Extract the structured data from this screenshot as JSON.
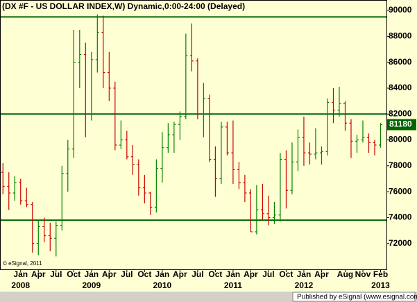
{
  "chart_data": {
    "type": "ohlc",
    "title": "(DX #F - US DOLLAR INDEX,W) Dynamic,0:00-24:00 (Delayed)",
    "copyright": "© eSignal, 2011",
    "footer": "Published by eSignal (www.esignal.com)",
    "up_color": "#008000",
    "down_color": "#cc0000",
    "line_color": "#006400",
    "x": [
      "2007-10",
      "2007-11",
      "2007-12",
      "2008-01",
      "2008-02",
      "2008-03",
      "2008-04",
      "2008-05",
      "2008-06",
      "2008-07",
      "2008-08",
      "2008-09",
      "2008-10",
      "2008-11",
      "2008-12",
      "2009-01",
      "2009-02",
      "2009-03",
      "2009-04",
      "2009-05",
      "2009-06",
      "2009-07",
      "2009-08",
      "2009-09",
      "2009-10",
      "2009-11",
      "2009-12",
      "2010-01",
      "2010-02",
      "2010-03",
      "2010-04",
      "2010-05",
      "2010-06",
      "2010-07",
      "2010-08",
      "2010-09",
      "2010-10",
      "2010-11",
      "2010-12",
      "2011-01",
      "2011-02",
      "2011-03",
      "2011-04",
      "2011-05",
      "2011-06",
      "2011-07",
      "2011-08",
      "2011-09",
      "2011-10",
      "2011-11",
      "2011-12",
      "2012-01",
      "2012-02",
      "2012-03",
      "2012-04",
      "2012-05",
      "2012-06",
      "2012-07",
      "2012-08",
      "2012-09",
      "2012-10",
      "2012-11",
      "2012-12",
      "2013-01",
      "2013-02"
    ],
    "open": [
      77500,
      76400,
      75900,
      76700,
      75300,
      75000,
      72000,
      73300,
      72600,
      72400,
      73400,
      77400,
      79300,
      86000,
      86600,
      82000,
      86200,
      88300,
      85200,
      84000,
      79600,
      80000,
      78700,
      78100,
      76300,
      75900,
      74800,
      77800,
      79400,
      80400,
      81200,
      81800,
      86500,
      86100,
      82000,
      83200,
      78500,
      77000,
      81000,
      79000,
      77700,
      76700,
      75900,
      72900,
      74600,
      74300,
      74000,
      74200,
      78500,
      76100,
      78300,
      80200,
      79000,
      78900,
      79000,
      79100,
      82900,
      82300,
      82800,
      81300,
      79900,
      80000,
      80200,
      79800,
      79600
    ],
    "high": [
      78200,
      77500,
      77200,
      77000,
      76300,
      75200,
      73800,
      74000,
      73600,
      73700,
      78000,
      80000,
      88500,
      88500,
      87500,
      86800,
      89700,
      89600,
      86800,
      84500,
      81500,
      80700,
      79600,
      78500,
      77300,
      76000,
      78500,
      80600,
      81300,
      81400,
      82200,
      88200,
      89000,
      86300,
      84400,
      83500,
      79500,
      81400,
      81400,
      81500,
      78300,
      77300,
      76200,
      76500,
      76600,
      75700,
      75200,
      79000,
      79200,
      79800,
      80800,
      81800,
      79800,
      80900,
      79500,
      83200,
      84000,
      84100,
      83000,
      81600,
      80400,
      81500,
      80500,
      80000,
      81300
    ],
    "low": [
      75800,
      74600,
      75300,
      75000,
      74800,
      71300,
      71100,
      72100,
      71400,
      71000,
      73000,
      76000,
      78600,
      84000,
      80200,
      81500,
      85200,
      84000,
      83000,
      79200,
      79300,
      78500,
      77300,
      75700,
      75100,
      74200,
      74400,
      76700,
      79000,
      79000,
      80000,
      81600,
      85300,
      81600,
      80200,
      78300,
      75600,
      76600,
      78800,
      76600,
      76200,
      75200,
      72900,
      72700,
      73800,
      73400,
      73500,
      73700,
      74700,
      75800,
      77600,
      78000,
      78100,
      78500,
      78100,
      78800,
      81300,
      81800,
      80700,
      78600,
      79000,
      79800,
      79000,
      78800,
      79400
    ],
    "close": [
      76400,
      75900,
      76700,
      75300,
      75000,
      72000,
      73300,
      72600,
      72400,
      73400,
      77400,
      79300,
      86000,
      86600,
      82000,
      86200,
      88300,
      85200,
      84000,
      79600,
      80000,
      78700,
      78100,
      76300,
      75900,
      74800,
      77800,
      79400,
      80400,
      81200,
      81800,
      86500,
      86100,
      82000,
      83200,
      78500,
      77000,
      81000,
      79000,
      77700,
      76700,
      75900,
      72900,
      74600,
      74300,
      74000,
      74200,
      78500,
      76100,
      78300,
      80200,
      79000,
      78900,
      79000,
      79100,
      82900,
      82300,
      82800,
      81300,
      79900,
      80000,
      80200,
      79800,
      79600,
      81180
    ],
    "last_price": 81180,
    "hlines": [
      89500,
      82000,
      73800
    ],
    "ylim": [
      70000,
      90700
    ],
    "yticks": [
      72000,
      74000,
      76000,
      78000,
      80000,
      82000,
      84000,
      86000,
      88000,
      90000
    ],
    "xticks": [
      {
        "value": "2008-01",
        "label": "Jan"
      },
      {
        "value": "2008-04",
        "label": "Apr"
      },
      {
        "value": "2008-07",
        "label": "Jul"
      },
      {
        "value": "2008-10",
        "label": "Oct"
      },
      {
        "value": "2009-01",
        "label": "Jan"
      },
      {
        "value": "2009-04",
        "label": "Apr"
      },
      {
        "value": "2009-07",
        "label": "Jul"
      },
      {
        "value": "2009-10",
        "label": "Oct"
      },
      {
        "value": "2010-01",
        "label": "Jan"
      },
      {
        "value": "2010-04",
        "label": "Apr"
      },
      {
        "value": "2010-07",
        "label": "Jul"
      },
      {
        "value": "2010-10",
        "label": "Oct"
      },
      {
        "value": "2011-01",
        "label": "Jan"
      },
      {
        "value": "2011-04",
        "label": "Apr"
      },
      {
        "value": "2011-07",
        "label": "Jul"
      },
      {
        "value": "2011-10",
        "label": "Oct"
      },
      {
        "value": "2012-01",
        "label": "Jan"
      },
      {
        "value": "2012-04",
        "label": "Apr"
      },
      {
        "value": "2012-08",
        "label": "Aug"
      },
      {
        "value": "2012-11",
        "label": "Nov"
      },
      {
        "value": "2013-02",
        "label": "Feb"
      }
    ],
    "year_ticks": [
      {
        "value": "2008-01",
        "label": "2008"
      },
      {
        "value": "2009-01",
        "label": "2009"
      },
      {
        "value": "2010-01",
        "label": "2010"
      },
      {
        "value": "2011-01",
        "label": "2011"
      },
      {
        "value": "2012-01",
        "label": "2012"
      },
      {
        "value": "2013-02",
        "label": "2013"
      }
    ]
  }
}
